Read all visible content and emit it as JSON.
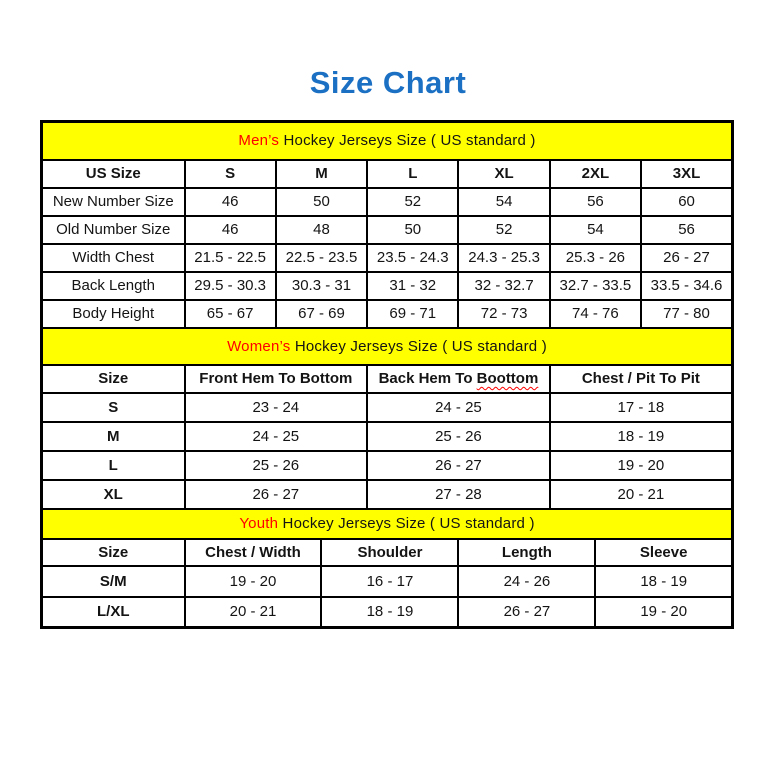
{
  "page": {
    "title": "Size Chart"
  },
  "colors": {
    "title_blue": "#1B70C4",
    "band_yellow": "#FFFF00",
    "accent_red": "#FF0000",
    "border_black": "#000000"
  },
  "chart_data": [
    {
      "type": "table",
      "band": {
        "highlight": "Men’s",
        "rest": " Hockey Jerseys Size ( US standard )"
      },
      "columns": [
        "US Size",
        "S",
        "M",
        "L",
        "XL",
        "2XL",
        "3XL"
      ],
      "rows": [
        [
          "New Number Size",
          "46",
          "50",
          "52",
          "54",
          "56",
          "60"
        ],
        [
          "Old Number Size",
          "46",
          "48",
          "50",
          "52",
          "54",
          "56"
        ],
        [
          "Width Chest",
          "21.5 - 22.5",
          "22.5 - 23.5",
          "23.5 - 24.3",
          "24.3 - 25.3",
          "25.3 - 26",
          "26 - 27"
        ],
        [
          "Back Length",
          "29.5 - 30.3",
          "30.3 - 31",
          "31 - 32",
          "32 - 32.7",
          "32.7 - 33.5",
          "33.5 - 34.6"
        ],
        [
          "Body Height",
          "65 - 67",
          "67 - 69",
          "69 - 71",
          "72 - 73",
          "74 - 76",
          "77 - 80"
        ]
      ]
    },
    {
      "type": "table",
      "band": {
        "highlight": "Women’s",
        "rest": " Hockey Jerseys Size ( US standard )"
      },
      "columns": [
        "Size",
        "Front Hem To Bottom",
        {
          "text": "Back Hem To ",
          "wavy": "Boottom"
        },
        "Chest / Pit To Pit"
      ],
      "rows": [
        [
          "S",
          "23 - 24",
          "24 - 25",
          "17 - 18"
        ],
        [
          "M",
          "24 - 25",
          "25 - 26",
          "18 - 19"
        ],
        [
          "L",
          "25 - 26",
          "26 - 27",
          "19 - 20"
        ],
        [
          "XL",
          "26 - 27",
          "27 - 28",
          "20 - 21"
        ]
      ]
    },
    {
      "type": "table",
      "band": {
        "highlight": "Youth",
        "rest": " Hockey Jerseys Size ( US standard )"
      },
      "columns": [
        "Size",
        "Chest / Width",
        "Shoulder",
        "Length",
        "Sleeve"
      ],
      "rows": [
        [
          "S/M",
          "19 - 20",
          "16 - 17",
          "24 - 26",
          "18 - 19"
        ],
        [
          "L/XL",
          "20 - 21",
          "18 - 19",
          "26 - 27",
          "19 - 20"
        ]
      ]
    }
  ]
}
